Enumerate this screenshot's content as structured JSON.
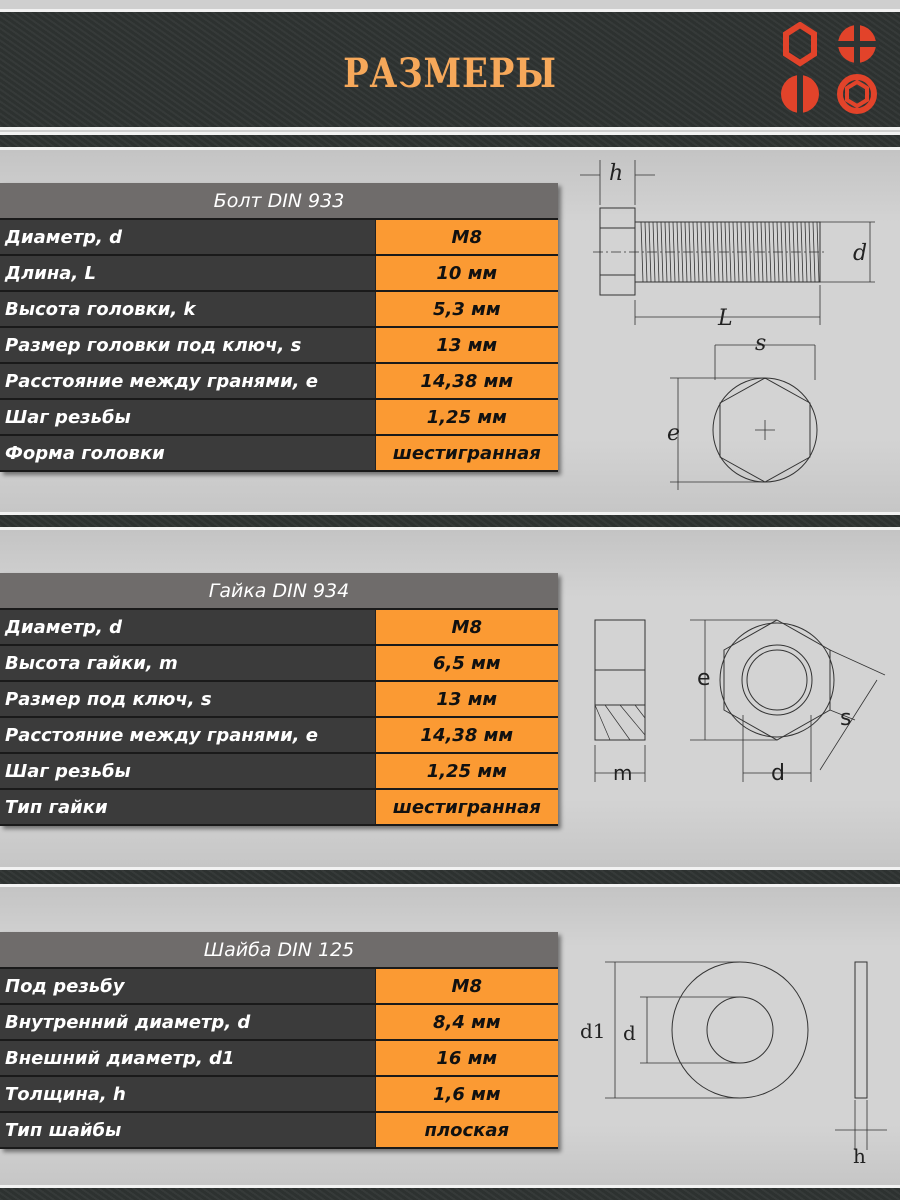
{
  "header": {
    "title": "РАЗМЕРЫ",
    "logo_color": "#e2432a",
    "title_color": "#f6a85a"
  },
  "bolt": {
    "title": "Болт DIN 933",
    "rows": [
      {
        "label": "Диаметр, d",
        "value": "M8"
      },
      {
        "label": "Длина, L",
        "value": "10 мм"
      },
      {
        "label": "Высота головки, k",
        "value": "5,3 мм"
      },
      {
        "label": "Размер головки под ключ, s",
        "value": "13 мм"
      },
      {
        "label": "Расстояние между гранями, e",
        "value": "14,38 мм"
      },
      {
        "label": "Шаг резьбы",
        "value": "1,25 мм"
      },
      {
        "label": "Форма головки",
        "value": "шестигранная"
      }
    ],
    "drawing": {
      "h": "h",
      "d": "d",
      "L": "L",
      "s": "s",
      "e": "e"
    }
  },
  "nut": {
    "title": "Гайка DIN 934",
    "rows": [
      {
        "label": "Диаметр, d",
        "value": "M8"
      },
      {
        "label": "Высота гайки, m",
        "value": "6,5 мм"
      },
      {
        "label": "Размер под ключ, s",
        "value": "13 мм"
      },
      {
        "label": "Расстояние между гранями, e",
        "value": "14,38 мм"
      },
      {
        "label": "Шаг резьбы",
        "value": "1,25 мм"
      },
      {
        "label": "Тип гайки",
        "value": "шестигранная"
      }
    ],
    "drawing": {
      "m": "m",
      "e": "e",
      "d": "d",
      "s": "s"
    }
  },
  "washer": {
    "title": "Шайба DIN 125",
    "rows": [
      {
        "label": "Под резьбу",
        "value": "M8"
      },
      {
        "label": "Внутренний диаметр, d",
        "value": "8,4 мм"
      },
      {
        "label": "Внешний диаметр, d1",
        "value": "16 мм"
      },
      {
        "label": "Толщина, h",
        "value": "1,6 мм"
      },
      {
        "label": "Тип шайбы",
        "value": "плоская"
      }
    ],
    "drawing": {
      "d1": "d1",
      "d": "d",
      "h": "h"
    }
  }
}
